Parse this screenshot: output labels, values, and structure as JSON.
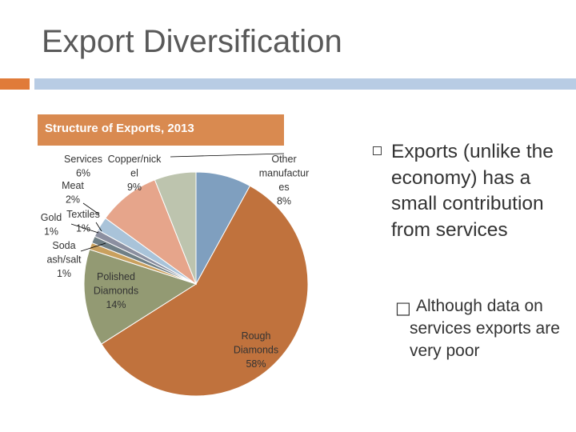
{
  "slide": {
    "title": "Export Diversification",
    "accent_color": "#e07b39",
    "rule_color": "#b8cce4"
  },
  "chart_header": {
    "text": "Structure of Exports, 2013",
    "color": "#d98a50"
  },
  "chart_data": {
    "type": "pie",
    "title": "Structure of Exports, 2013",
    "unit": "%",
    "slices": [
      {
        "label": "Other manufactures",
        "display_label": "Other\nmanufactur\nes\n8%",
        "value": 8,
        "color": "#7f9fbf"
      },
      {
        "label": "Rough Diamonds",
        "display_label": "Rough\nDiamonds\n58%",
        "value": 58,
        "color": "#c0723d"
      },
      {
        "label": "Polished Diamonds",
        "display_label": "Polished\nDiamonds\n14%",
        "value": 14,
        "color": "#939a73"
      },
      {
        "label": "Soda ash/salt",
        "display_label": "Soda\nash/salt\n1%",
        "value": 1,
        "color": "#c9a05e"
      },
      {
        "label": "Gold",
        "display_label": "Gold\n1%",
        "value": 1,
        "color": "#6f7f86"
      },
      {
        "label": "Textiles",
        "display_label": "Textiles\n1%",
        "value": 1,
        "color": "#8b8fa0"
      },
      {
        "label": "Meat",
        "display_label": "Meat\n2%",
        "value": 2,
        "color": "#a9c3d9"
      },
      {
        "label": "Copper/nickel",
        "display_label": "Copper/nick\nel\n9%",
        "value": 9,
        "color": "#e6a58b"
      },
      {
        "label": "Services",
        "display_label": "Services\n6%",
        "value": 6,
        "color": "#bdc4ae"
      }
    ]
  },
  "bullets": {
    "main": "Exports (unlike the economy) has a small contribution from services",
    "sub": "Although data on services exports are very poor",
    "sub_marker": "□"
  }
}
